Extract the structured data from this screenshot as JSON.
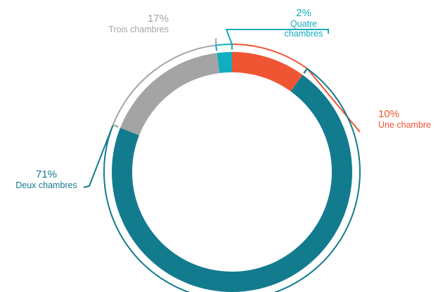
{
  "colors": {
    "background": "#ffffff"
  },
  "chart_data": {
    "type": "pie",
    "variant": "donut",
    "title": "",
    "categories": [
      "Une chambre",
      "Deux chambres",
      "Trois chambres",
      "Quatre chambres"
    ],
    "values": [
      10,
      71,
      17,
      2
    ],
    "value_labels": [
      "10%",
      "71%",
      "17%",
      "2%"
    ],
    "name_lines": [
      [
        "Une chambre"
      ],
      [
        "Deux chambres"
      ],
      [
        "Trois chambres"
      ],
      [
        "Quatre",
        "chambres"
      ]
    ],
    "colors": [
      "#f05533",
      "#127c8e",
      "#a4a4a5",
      "#12aebf"
    ],
    "label_colors": [
      "#f05533",
      "#127c8e",
      "#a4a4a5",
      "#12aebf"
    ],
    "start_angle_deg": 0,
    "direction": "clockwise",
    "legend": "none"
  }
}
